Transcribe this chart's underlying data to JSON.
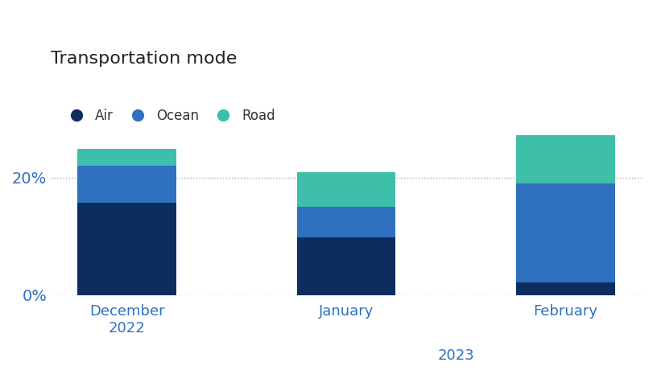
{
  "title": "Transportation mode",
  "categories": [
    "December\n2022",
    "January",
    "February"
  ],
  "air_values": [
    0.158,
    0.098,
    0.022
  ],
  "ocean_values": [
    0.062,
    0.052,
    0.168
  ],
  "road_values": [
    0.03,
    0.06,
    0.082
  ],
  "colors": {
    "Air": "#0d2d5e",
    "Ocean": "#2f70c0",
    "Road": "#3dbfaa"
  },
  "legend_labels": [
    "Air",
    "Ocean",
    "Road"
  ],
  "yticks": [
    0.0,
    0.2
  ],
  "ytick_labels": [
    "0%",
    "20%"
  ],
  "ylim": [
    0,
    0.3
  ],
  "background_color": "#ffffff",
  "xlabel_2023": "2023",
  "title_fontsize": 16,
  "tick_label_color": "#2f70c0",
  "bar_width": 0.45
}
